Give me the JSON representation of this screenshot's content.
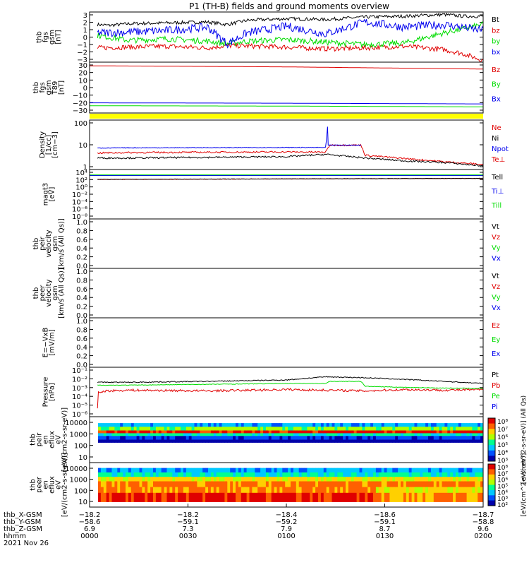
{
  "title": "P1 (TH-B) fields and ground moments overview",
  "colors": {
    "black": "#000000",
    "red": "#e00000",
    "green": "#00dd00",
    "blue": "#0000ee",
    "yellow": "#ffff00"
  },
  "chart_data": [
    {
      "type": "line",
      "ylabel": [
        "thb",
        "fgs",
        "gsm",
        "[nT]"
      ],
      "yticks": [
        "3",
        "2",
        "1",
        "0",
        "−1",
        "−2",
        "−3"
      ],
      "ylim": [
        -3,
        3
      ],
      "legend": [
        {
          "text": "Bt",
          "color": "#000000"
        },
        {
          "text": "bz",
          "color": "#e00000"
        },
        {
          "text": "by",
          "color": "#00dd00"
        },
        {
          "text": "bx",
          "color": "#0000ee"
        }
      ],
      "series": [
        {
          "name": "Bt",
          "color": "#000000",
          "x": [
            0.02,
            0.05,
            0.1,
            0.2,
            0.3,
            0.35,
            0.4,
            0.5,
            0.6,
            0.7,
            0.8,
            0.9,
            0.95,
            1.0
          ],
          "y": [
            1.5,
            1.4,
            1.6,
            1.7,
            1.8,
            1.5,
            2.0,
            2.2,
            2.1,
            2.4,
            2.5,
            2.7,
            2.5,
            2.5
          ],
          "noise": 0.2
        },
        {
          "name": "bz",
          "color": "#e00000",
          "x": [
            0.02,
            0.1,
            0.2,
            0.3,
            0.35,
            0.5,
            0.6,
            0.7,
            0.8,
            0.9,
            0.95,
            1.0
          ],
          "y": [
            -1.3,
            -1.2,
            -1.1,
            -1.3,
            -1.0,
            -1.2,
            -1.4,
            -1.3,
            -1.1,
            -1.5,
            -2.0,
            -2.8
          ],
          "noise": 0.3
        },
        {
          "name": "by",
          "color": "#00dd00",
          "x": [
            0.02,
            0.1,
            0.2,
            0.3,
            0.35,
            0.4,
            0.5,
            0.6,
            0.7,
            0.8,
            0.9,
            1.0
          ],
          "y": [
            0.2,
            -0.4,
            -0.2,
            -0.5,
            -0.8,
            -0.5,
            -0.3,
            -0.6,
            -0.9,
            -0.7,
            0.5,
            1.5
          ],
          "noise": 0.35
        },
        {
          "name": "bx",
          "color": "#0000ee",
          "x": [
            0.02,
            0.1,
            0.2,
            0.3,
            0.35,
            0.4,
            0.5,
            0.6,
            0.7,
            0.8,
            0.9,
            1.0
          ],
          "y": [
            0.5,
            0.6,
            0.8,
            1.2,
            -0.8,
            0.5,
            1.3,
            0.4,
            1.8,
            1.2,
            1.5,
            0.8
          ],
          "noise": 0.5
        }
      ]
    },
    {
      "type": "line",
      "ylabel": [
        "thb",
        "fgs",
        "gsm",
        "T89",
        "[nT]"
      ],
      "yticks": [
        "30",
        "20",
        "10",
        "0",
        "−10",
        "−20",
        "−30"
      ],
      "ylim": [
        -35,
        35
      ],
      "legend": [
        {
          "text": "Bz",
          "color": "#e00000"
        },
        {
          "text": "By",
          "color": "#00dd00"
        },
        {
          "text": "Bx",
          "color": "#0000ee"
        }
      ],
      "series": [
        {
          "name": "Bz",
          "color": "#e00000",
          "x": [
            0,
            0.5,
            1.0
          ],
          "y": [
            30,
            28.5,
            25.5
          ],
          "noise": 0
        },
        {
          "name": "By",
          "color": "#00dd00",
          "x": [
            0,
            0.5,
            1.0
          ],
          "y": [
            -25,
            -25.5,
            -26.5
          ],
          "noise": 0
        },
        {
          "name": "Bx",
          "color": "#0000ee",
          "x": [
            0,
            0.5,
            1.0
          ],
          "y": [
            -21,
            -21.5,
            -22.5
          ],
          "noise": 0
        }
      ]
    },
    {
      "type": "line",
      "yscale": "log",
      "ylabel": [
        "Density",
        "[1/cc]",
        "[cm−3]"
      ],
      "yticks": [
        "100",
        "10",
        "1"
      ],
      "ylim": [
        0.3,
        300
      ],
      "legend": [
        {
          "text": "Ne",
          "color": "#e00000"
        },
        {
          "text": "Ni",
          "color": "#000000"
        },
        {
          "text": "Npot",
          "color": "#0000ee"
        },
        {
          "text": "Te⊥",
          "color": "#e00000"
        }
      ],
      "series": [
        {
          "name": "Ne",
          "color": "#e00000",
          "x": [
            0.02,
            0.1,
            0.5,
            0.6,
            0.61,
            0.69,
            0.7,
            0.8,
            0.9,
            1.0
          ],
          "y": [
            3,
            3.2,
            3.5,
            3.4,
            9,
            9,
            2.2,
            1.4,
            0.9,
            0.6
          ],
          "noise": 0.05
        },
        {
          "name": "Ni",
          "color": "#000000",
          "x": [
            0.02,
            0.1,
            0.5,
            0.6,
            0.7,
            0.8,
            0.9,
            1.0
          ],
          "y": [
            1.5,
            1.5,
            1.8,
            2.5,
            1.5,
            1.0,
            0.8,
            0.5
          ],
          "noise": 0.05
        },
        {
          "name": "Npot",
          "color": "#0000ee",
          "x": [
            0.02,
            0.1,
            0.5,
            0.6,
            0.605,
            0.606,
            0.61,
            0.69
          ],
          "y": [
            6,
            6.2,
            6.5,
            6.5,
            150,
            9,
            9,
            9
          ],
          "noise": 0.02
        }
      ]
    },
    {
      "type": "line",
      "yscale": "log",
      "ylabel": [
        "magt3",
        "[eV]"
      ],
      "yticks": [
        "10⁴",
        "10²",
        "10⁰",
        "10⁻²",
        "10⁻⁴",
        "10⁻⁶",
        "10⁻⁸"
      ],
      "ylim": [
        1e-09,
        100000.0
      ],
      "legend": [
        {
          "text": "Tell",
          "color": "#000000"
        },
        {
          "text": "Ti⊥",
          "color": "#0000ee"
        },
        {
          "text": "Till",
          "color": "#00dd00"
        }
      ],
      "series": [
        {
          "name": "Te⊥",
          "color": "#e00000",
          "x": [
            0.02,
            1.0
          ],
          "y": [
            150,
            300
          ],
          "noise": 0.05
        },
        {
          "name": "Tell",
          "color": "#000000",
          "x": [
            0.02,
            1.0
          ],
          "y": [
            160,
            320
          ],
          "noise": 0.05
        },
        {
          "name": "Ti⊥",
          "color": "#0000ee",
          "x": [
            0,
            1.0
          ],
          "y": [
            2000,
            2000
          ],
          "noise": 0
        },
        {
          "name": "Till",
          "color": "#00dd00",
          "x": [
            0,
            1.0
          ],
          "y": [
            3000,
            3000
          ],
          "noise": 0
        }
      ]
    },
    {
      "type": "line",
      "ylabel": [
        "thb",
        "peir",
        "velocity",
        "gsm",
        "[km/s (All Qs)]"
      ],
      "yticks": [
        "1.0",
        "0.8",
        "0.6",
        "0.4",
        "0.2",
        "0.0"
      ],
      "ylim": [
        0,
        1
      ],
      "legend": [
        {
          "text": "Vt",
          "color": "#000000"
        },
        {
          "text": "Vz",
          "color": "#e00000"
        },
        {
          "text": "Vy",
          "color": "#00dd00"
        },
        {
          "text": "Vx",
          "color": "#0000ee"
        }
      ],
      "series": []
    },
    {
      "type": "line",
      "ylabel": [
        "thb",
        "peer",
        "velocity",
        "gsm",
        "[km/s (All Qs)]"
      ],
      "yticks": [
        "1.0",
        "0.8",
        "0.6",
        "0.4",
        "0.2",
        "0.0"
      ],
      "ylim": [
        0,
        1
      ],
      "legend": [
        {
          "text": "Vt",
          "color": "#000000"
        },
        {
          "text": "Vz",
          "color": "#e00000"
        },
        {
          "text": "Vy",
          "color": "#00dd00"
        },
        {
          "text": "Vx",
          "color": "#0000ee"
        }
      ],
      "series": []
    },
    {
      "type": "line",
      "ylabel": [
        "E=−VxB",
        "[mV/m]"
      ],
      "yticks": [
        "1.0",
        "0.8",
        "0.6",
        "0.4",
        "0.2",
        "0.0"
      ],
      "ylim": [
        0,
        1
      ],
      "legend": [
        {
          "text": "Ez",
          "color": "#e00000"
        },
        {
          "text": "Ey",
          "color": "#00dd00"
        },
        {
          "text": "Ex",
          "color": "#0000ee"
        }
      ],
      "series": []
    },
    {
      "type": "line",
      "yscale": "log",
      "ylabel": [
        "Pressure",
        "[nPa]"
      ],
      "yticks": [
        "10⁻¹",
        "10⁻²",
        "10⁻³",
        "10⁻⁴",
        "10⁻⁵",
        "10⁻⁶"
      ],
      "ylim": [
        1e-06,
        0.15
      ],
      "legend": [
        {
          "text": "Pt",
          "color": "#000000"
        },
        {
          "text": "Pb",
          "color": "#e00000"
        },
        {
          "text": "Pe",
          "color": "#00dd00"
        },
        {
          "text": "Pi",
          "color": "#0000ee"
        }
      ],
      "series": [
        {
          "name": "Pt",
          "color": "#000000",
          "x": [
            0.02,
            0.1,
            0.3,
            0.5,
            0.6,
            0.7,
            0.8,
            0.9,
            1.0
          ],
          "y": [
            0.004,
            0.004,
            0.005,
            0.007,
            0.015,
            0.012,
            0.008,
            0.005,
            0.003
          ],
          "noise": 0.05
        },
        {
          "name": "Pb",
          "color": "#e00000",
          "x": [
            0.02,
            0.021,
            0.04,
            0.1,
            0.3,
            0.5,
            0.6,
            0.7,
            0.8,
            0.9,
            1.0
          ],
          "y": [
            1e-05,
            0.0003,
            0.0005,
            0.0006,
            0.0005,
            0.0007,
            0.0006,
            0.0005,
            0.0007,
            0.0006,
            0.0007
          ],
          "noise": 0.12
        },
        {
          "name": "Pe",
          "color": "#00dd00",
          "x": [
            0.02,
            0.1,
            0.5,
            0.6,
            0.61,
            0.69,
            0.7,
            0.8,
            0.9,
            1.0
          ],
          "y": [
            0.002,
            0.002,
            0.003,
            0.003,
            0.005,
            0.005,
            0.0015,
            0.0012,
            0.001,
            0.0009
          ],
          "noise": 0.03
        }
      ]
    },
    {
      "type": "heatmap",
      "ylabel": [
        "thb",
        "peir",
        "en",
        "eflux",
        "eV",
        "[eV/(cm2-s-sr-eV)]"
      ],
      "yticks": [
        "10000",
        "1000",
        "100",
        "10"
      ],
      "colorbar": {
        "ticks": [
          "10⁸",
          "10⁷",
          "10⁶",
          "10⁵",
          "10⁴",
          "10³"
        ],
        "label": "[eV/(cm^2-s-sr-eV)] (All Qs)"
      }
    },
    {
      "type": "heatmap",
      "ylabel": [
        "thb",
        "peer",
        "en",
        "eflux",
        "eV",
        "[eV/(cm2-s-sr-eV)]"
      ],
      "yticks": [
        "10000",
        "1000",
        "100",
        "10"
      ],
      "colorbar": {
        "ticks": [
          "10⁸",
          "10⁷",
          "10⁶",
          "10⁵",
          "10⁴",
          "10³",
          "10²"
        ],
        "label": "[eV/(cm^2-s-sr-eV)]"
      }
    }
  ],
  "xaxis": {
    "rowlabels": [
      "thb_X-GSM",
      "thb_Y-GSM",
      "thb_Z-GSM",
      "hhmm",
      "2021 Nov 26"
    ],
    "ticks": [
      {
        "v": 0.0,
        "rows": [
          "−18.2",
          "−58.6",
          "6.9",
          "0000"
        ]
      },
      {
        "v": 0.25,
        "rows": [
          "−18.2",
          "−59.1",
          "7.3",
          "0030"
        ]
      },
      {
        "v": 0.5,
        "rows": [
          "−18.4",
          "−59.2",
          "7.9",
          "0100"
        ]
      },
      {
        "v": 0.75,
        "rows": [
          "−18.6",
          "−59.1",
          "8.7",
          "0130"
        ]
      },
      {
        "v": 1.0,
        "rows": [
          "−18.7",
          "−58.8",
          "9.6",
          "0200"
        ]
      }
    ]
  }
}
